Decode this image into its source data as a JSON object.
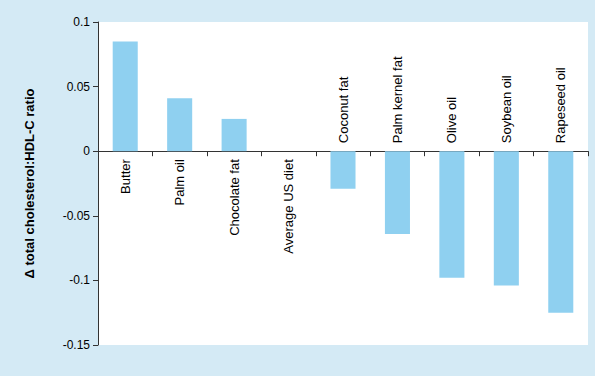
{
  "chart_data": {
    "type": "bar",
    "ylabel": "Δ total cholesterol:HDL-C ratio",
    "categories": [
      "Butter",
      "Palm oil",
      "Chocolate fat",
      "Average US diet",
      "Coconut fat",
      "Palm kernel fat",
      "Olive oil",
      "Soybean oil",
      "Rapeseed oil"
    ],
    "values": [
      0.085,
      0.041,
      0.025,
      0,
      -0.029,
      -0.064,
      -0.098,
      -0.104,
      -0.125
    ],
    "color": "#8fd0f0",
    "ylim": [
      -0.15,
      0.1
    ],
    "yticks": [
      -0.15,
      -0.1,
      -0.05,
      0,
      0.05,
      0.1
    ],
    "grid": false
  }
}
